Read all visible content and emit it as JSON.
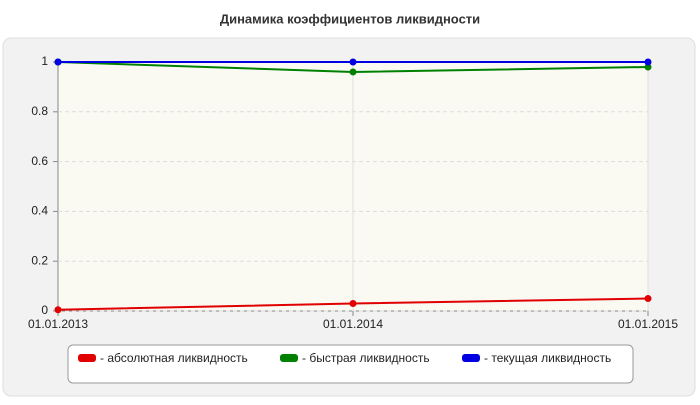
{
  "chart_data": {
    "type": "line",
    "title": "Динамика коэффициентов ликвидности",
    "categories": [
      "01.01.2013",
      "01.01.2014",
      "01.01.2015"
    ],
    "series": [
      {
        "name": "- абсолютная ликвидность",
        "color": "#e00000",
        "values": [
          0.005,
          0.03,
          0.05
        ]
      },
      {
        "name": "- быстрая ликвидность",
        "color": "#008000",
        "values": [
          1.0,
          0.96,
          0.98
        ]
      },
      {
        "name": "- текущая ликвидность",
        "color": "#0000e0",
        "values": [
          1,
          1,
          1
        ]
      }
    ],
    "ylim": [
      0,
      1
    ],
    "yticks": [
      0,
      0.2,
      0.4,
      0.6,
      0.8,
      1
    ],
    "grid": true
  }
}
